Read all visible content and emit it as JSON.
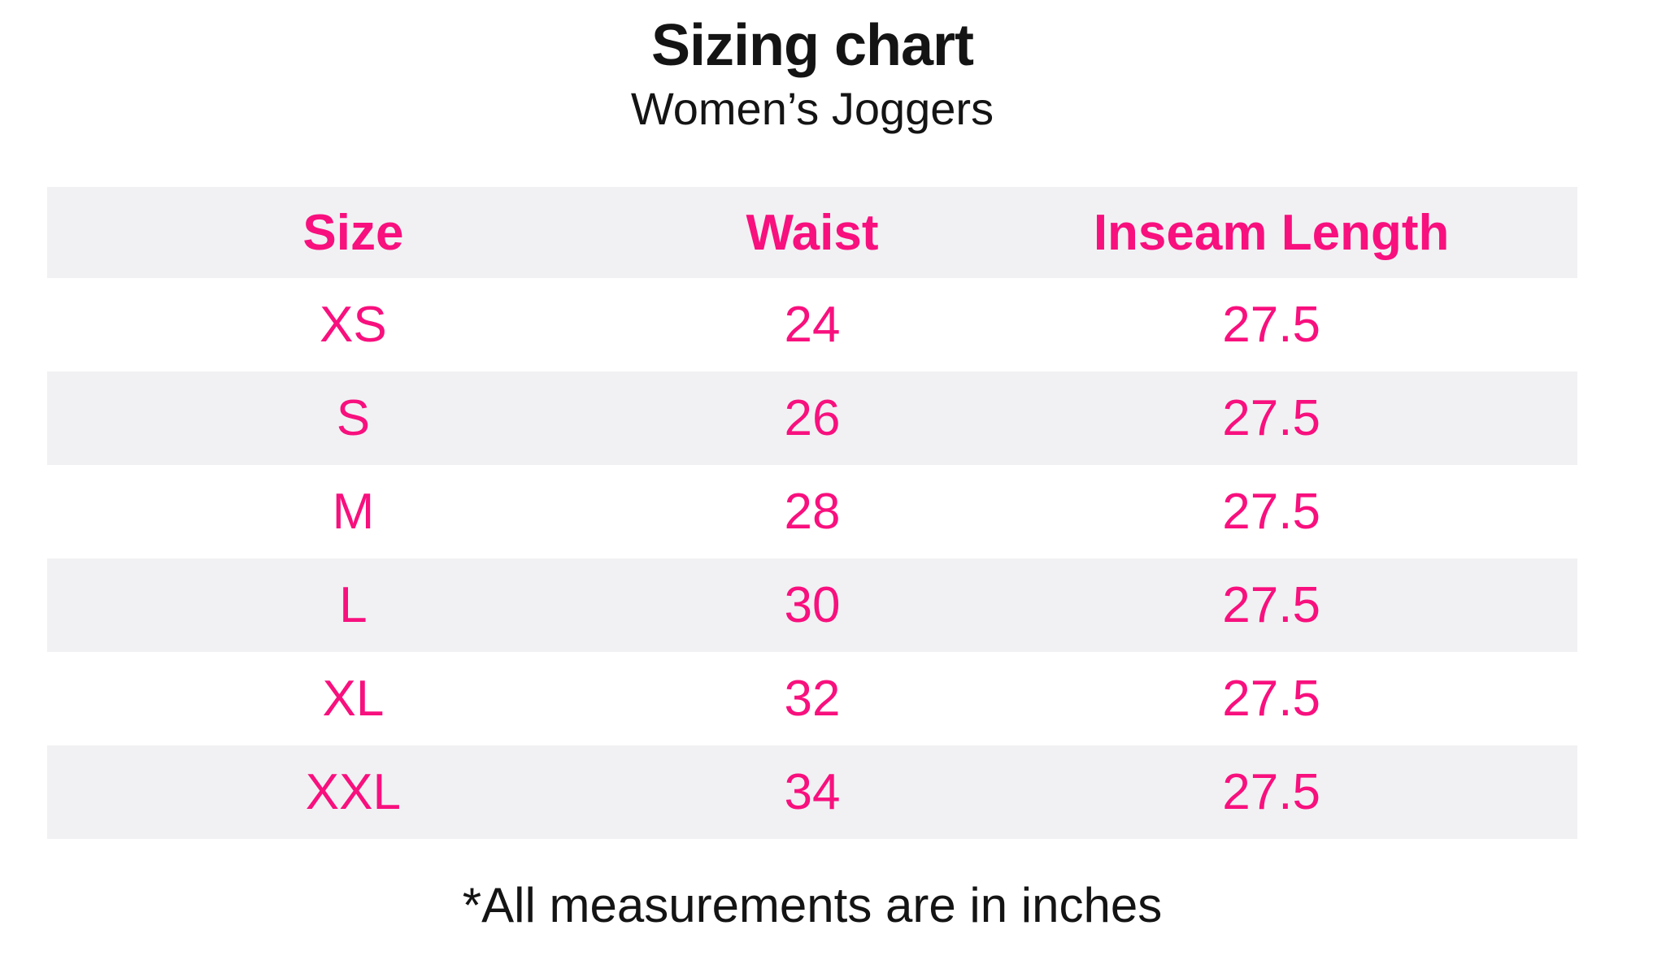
{
  "accent_color": "#F8107E",
  "row_alt_color": "#F1F1F3",
  "text_color": "#141414",
  "chart_data": {
    "type": "table",
    "title": "Sizing chart",
    "subtitle": "Women’s Joggers",
    "columns": [
      "Size",
      "Waist",
      "Inseam Length"
    ],
    "rows": [
      [
        "XS",
        24,
        27.5
      ],
      [
        "S",
        26,
        27.5
      ],
      [
        "M",
        28,
        27.5
      ],
      [
        "L",
        30,
        27.5
      ],
      [
        "XL",
        32,
        27.5
      ],
      [
        "XXL",
        34,
        27.5
      ]
    ],
    "units": "inches",
    "footnote": "*All measurements are in inches",
    "layout": {
      "header_background": "#F1F1F3",
      "alternating_rows": true,
      "column_alignment": "center"
    }
  }
}
